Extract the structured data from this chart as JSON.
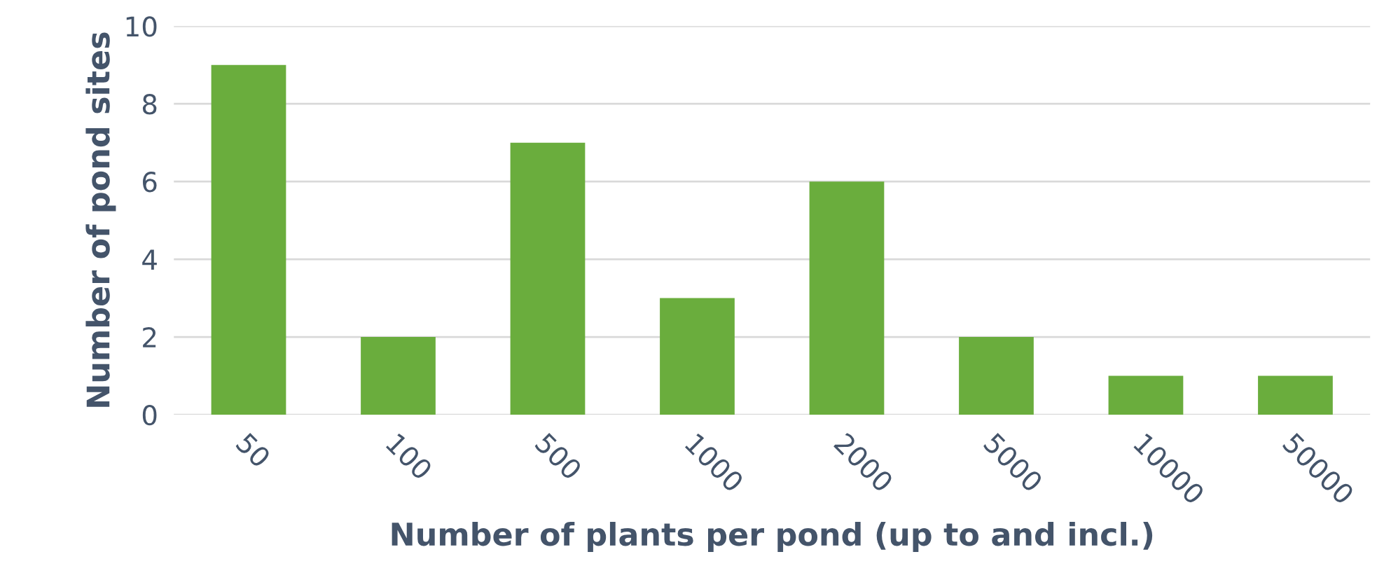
{
  "chart_data": {
    "type": "bar",
    "xlabel": "Number of plants per pond (up to and incl.)",
    "ylabel": "Number of pond sites",
    "categories": [
      "50",
      "100",
      "500",
      "1000",
      "2000",
      "5000",
      "10000",
      "50000"
    ],
    "values": [
      9,
      2,
      7,
      3,
      6,
      2,
      1,
      1
    ],
    "color": "#6aad3d",
    "ylim": [
      0,
      10
    ],
    "yticks": [
      0,
      2,
      4,
      6,
      8,
      10
    ],
    "grid": "y"
  }
}
